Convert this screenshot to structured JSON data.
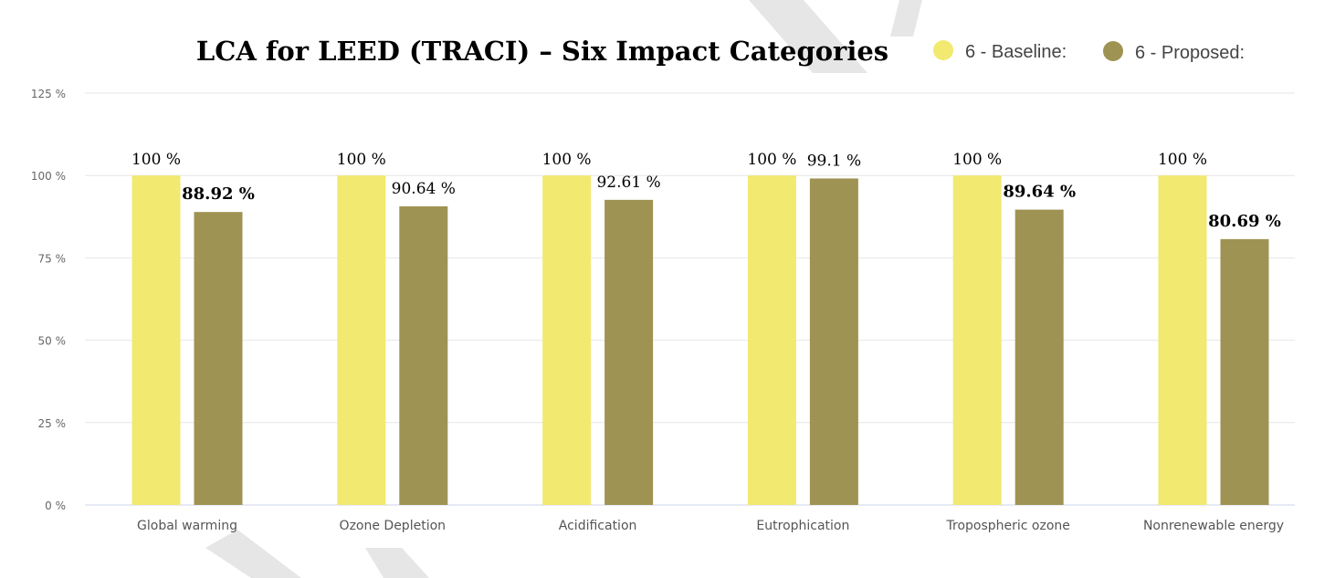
{
  "chart_data": {
    "type": "bar",
    "title": "LCA for LEED (TRACI) – Six Impact Categories",
    "categories": [
      "Global warming",
      "Ozone Depletion",
      "Acidification",
      "Eutrophication",
      "Tropospheric ozone",
      "Nonrenewable energy"
    ],
    "series": [
      {
        "name": "6 - Baseline:",
        "color": "#f2e970",
        "values": [
          100,
          100,
          100,
          100,
          100,
          100
        ],
        "labels": [
          "100 %",
          "100 %",
          "100 %",
          "100 %",
          "100 %",
          "100 %"
        ],
        "bold": [
          false,
          false,
          false,
          false,
          false,
          false
        ]
      },
      {
        "name": "6 - Proposed:",
        "color": "#9e9352",
        "values": [
          88.92,
          90.64,
          92.61,
          99.1,
          89.64,
          80.69
        ],
        "labels": [
          "88.92 %",
          "90.64 %",
          "92.61 %",
          "99.1 %",
          "89.64 %",
          "80.69 %"
        ],
        "bold": [
          true,
          false,
          false,
          false,
          true,
          true
        ]
      }
    ],
    "ylim": [
      0,
      125
    ],
    "yticks": [
      "0 %",
      "25 %",
      "50 %",
      "75 %",
      "100 %",
      "125 %"
    ],
    "ytick_values": [
      0,
      25,
      50,
      75,
      100,
      125
    ],
    "grid": true,
    "legend": "top-right",
    "xlabel": "",
    "ylabel": ""
  }
}
